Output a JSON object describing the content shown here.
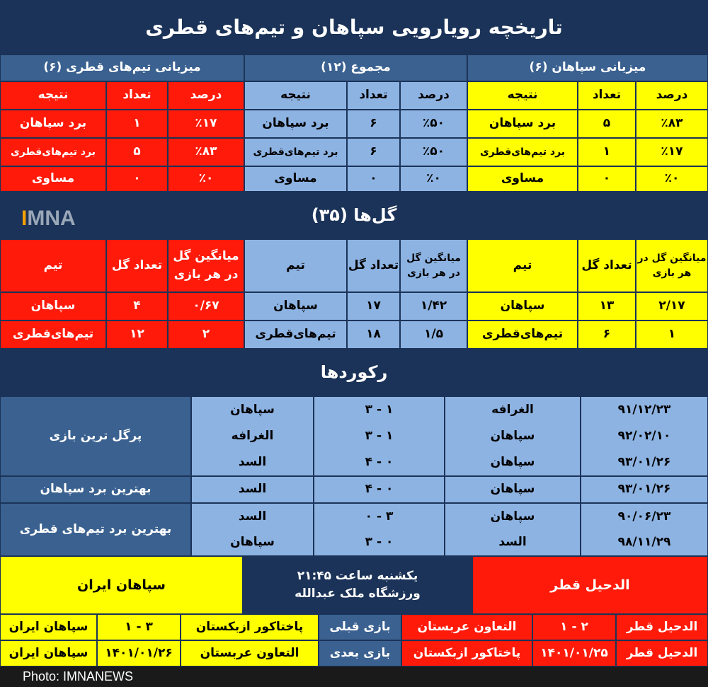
{
  "title": "تاریخچه رویارویی سپاهان و تیم‌های قطری",
  "results": {
    "sections": [
      {
        "header": "میزبانی سپاهان (۶)",
        "cols": [
          "درصد",
          "تعداد",
          "نتیجه"
        ],
        "rows": [
          [
            "٪۸۳",
            "۵",
            "برد سپاهان"
          ],
          [
            "٪۱۷",
            "۱",
            "برد تیم‌های‌قطری"
          ],
          [
            "٪۰",
            "۰",
            "مساوی"
          ]
        ]
      },
      {
        "header": "مجموع (۱۲)",
        "cols": [
          "درصد",
          "تعداد",
          "نتیجه"
        ],
        "rows": [
          [
            "٪۵۰",
            "۶",
            "برد سپاهان"
          ],
          [
            "٪۵۰",
            "۶",
            "برد تیم‌های‌قطری"
          ],
          [
            "٪۰",
            "۰",
            "مساوی"
          ]
        ]
      },
      {
        "header": "میزبانی تیم‌های قطری (۶)",
        "cols": [
          "درصد",
          "تعداد",
          "نتیجه"
        ],
        "rows": [
          [
            "٪۱۷",
            "۱",
            "برد سپاهان"
          ],
          [
            "٪۸۳",
            "۵",
            "برد تیم‌های‌قطری"
          ],
          [
            "٪۰",
            "۰",
            "مساوی"
          ]
        ]
      }
    ]
  },
  "goals": {
    "title": "گل‌ها (۳۵)",
    "logo": "IMNA",
    "cols": [
      "میانگین گل در هر بازی",
      "تعداد گل",
      "تیم"
    ],
    "sections": [
      [
        [
          "۲/۱۷",
          "۱۳",
          "سپاهان"
        ],
        [
          "۱",
          "۶",
          "تیم‌های‌قطری"
        ]
      ],
      [
        [
          "۱/۴۲",
          "۱۷",
          "سپاهان"
        ],
        [
          "۱/۵",
          "۱۸",
          "تیم‌های‌قطری"
        ]
      ],
      [
        [
          "۰/۶۷",
          "۴",
          "سپاهان"
        ],
        [
          "۲",
          "۱۲",
          "تیم‌های‌قطری"
        ]
      ]
    ]
  },
  "records": {
    "title": "رکوردها",
    "groups": [
      {
        "label": "پرگل ترین بازی",
        "rows": [
          [
            "۹۱/۱۲/۲۳",
            "الغرافه",
            "۳ - ۱",
            "سپاهان"
          ],
          [
            "۹۲/۰۲/۱۰",
            "سپاهان",
            "۳ - ۱",
            "الغرافه"
          ],
          [
            "۹۳/۰۱/۲۶",
            "سپاهان",
            "۴ - ۰",
            "السد"
          ]
        ]
      },
      {
        "label": "بهترین برد سپاهان",
        "rows": [
          [
            "۹۳/۰۱/۲۶",
            "سپاهان",
            "۴ - ۰",
            "السد"
          ]
        ]
      },
      {
        "label": "بهترین برد تیم‌های قطری",
        "rows": [
          [
            "۹۰/۰۶/۲۳",
            "سپاهان",
            "۰ - ۳",
            "السد"
          ],
          [
            "۹۸/۱۱/۲۹",
            "السد",
            "۳ - ۰",
            "سپاهان"
          ]
        ]
      }
    ]
  },
  "match": {
    "home": "الدحیل قطر",
    "away": "سپاهان ایران",
    "time": "یکشنبه ساعت ۲۱:۴۵",
    "venue": "ورزشگاه ملک عبدالله"
  },
  "form": [
    {
      "label": "بازی قبلی",
      "home": [
        "الدحیل قطر",
        "۱ - ۲",
        "التعاون عربستان"
      ],
      "away": [
        "پاختاکور ازبکستان",
        "۱ - ۳",
        "سپاهان ایران"
      ]
    },
    {
      "label": "بازی بعدی",
      "home": [
        "الدحیل قطر",
        "۱۴۰۱/۰۱/۲۵",
        "پاختاکور ازبکستان"
      ],
      "away": [
        "التعاون عربستان",
        "۱۴۰۱/۰۱/۲۶",
        "سپاهان ایران"
      ]
    }
  ],
  "footer": "Photo: IMNANEWS",
  "colors": {
    "navy": "#1b3358",
    "steel": "#3a6190",
    "light_blue": "#8db3e2",
    "yellow": "#ffff00",
    "red": "#ff1a0a"
  }
}
